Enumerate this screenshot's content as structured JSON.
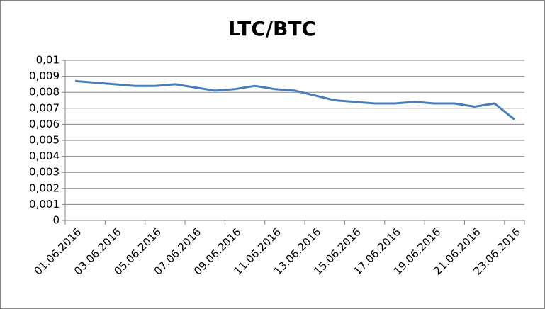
{
  "chart_data": {
    "type": "line",
    "title": "LTC/BTC",
    "categories": [
      "01.06.2016",
      null,
      "03.06.2016",
      null,
      "05.06.2016",
      null,
      "07.06.2016",
      null,
      "09.06.2016",
      null,
      "11.06.2016",
      null,
      "13.06.2016",
      null,
      "15.06.2016",
      null,
      "17.06.2016",
      null,
      "19.06.2016",
      null,
      "21.06.2016",
      null,
      "23.06.2016"
    ],
    "series": [
      {
        "name": "LTC/BTC",
        "color": "#4a7ebb",
        "values": [
          0.0087,
          0.0086,
          0.0085,
          0.0084,
          0.0084,
          0.0085,
          0.0083,
          0.0081,
          0.0082,
          0.0084,
          0.0082,
          0.0081,
          0.0078,
          0.0075,
          0.0074,
          0.0073,
          0.0073,
          0.0074,
          0.0073,
          0.0073,
          0.0071,
          0.0073,
          0.0063
        ]
      }
    ],
    "ylim": [
      0,
      0.01
    ],
    "yticks": [
      0,
      {
        "value": 0.001,
        "label": "0,001"
      },
      {
        "value": 0.002,
        "label": "0,002"
      },
      {
        "value": 0.003,
        "label": "0,003"
      },
      {
        "value": 0.004,
        "label": "0,004"
      },
      {
        "value": 0.005,
        "label": "0,005"
      },
      {
        "value": 0.006,
        "label": "0,006"
      },
      {
        "value": 0.007,
        "label": "0,007"
      },
      {
        "value": 0.008,
        "label": "0,008"
      },
      {
        "value": 0.009,
        "label": "0,009"
      },
      {
        "value": 0.01,
        "label": "0,01"
      }
    ],
    "grid": true
  }
}
